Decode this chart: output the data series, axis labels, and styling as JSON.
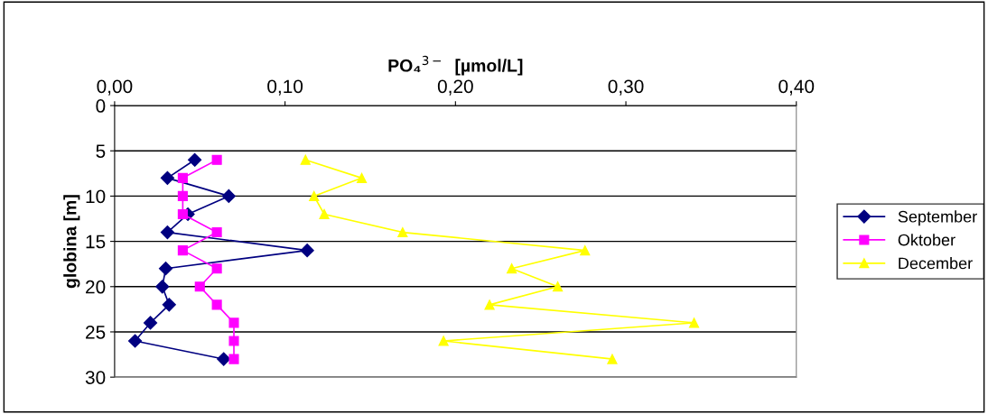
{
  "chart_data": {
    "type": "line",
    "xlabel": "PO₄$^{3−}$  [µmol/L]",
    "ylabel": "globina [m]",
    "xlim": [
      0,
      0.4
    ],
    "xticks": [
      {
        "value": 0,
        "label": "0,00"
      },
      {
        "value": 0.1,
        "label": "0,10"
      },
      {
        "value": 0.2,
        "label": "0,20"
      },
      {
        "value": 0.3,
        "label": "0,30"
      },
      {
        "value": 0.4,
        "label": "0,40"
      }
    ],
    "ylim": [
      30,
      0
    ],
    "yticks": [
      0,
      5,
      10,
      15,
      20,
      25,
      30
    ],
    "grid": "y",
    "legend": "right",
    "series": [
      {
        "name": "September",
        "color": "#000080",
        "marker": "diamond",
        "x": [
          0.047,
          0.031,
          0.067,
          0.043,
          0.031,
          0.113,
          0.03,
          0.028,
          0.032,
          0.021,
          0.012,
          0.064
        ],
        "values": [
          6,
          8,
          10,
          12,
          14,
          16,
          18,
          20,
          22,
          24,
          26,
          28
        ]
      },
      {
        "name": "Oktober",
        "color": "#ff00ff",
        "marker": "square",
        "x": [
          0.06,
          0.04,
          0.04,
          0.04,
          0.06,
          0.04,
          0.06,
          0.05,
          0.06,
          0.07,
          0.07,
          0.07
        ],
        "values": [
          6,
          8,
          10,
          12,
          14,
          16,
          18,
          20,
          22,
          24,
          26,
          28
        ]
      },
      {
        "name": "December",
        "color": "#ffff00",
        "marker": "triangle",
        "x": [
          0.112,
          0.145,
          0.117,
          0.123,
          0.169,
          0.276,
          0.233,
          0.26,
          0.22,
          0.34,
          0.193,
          0.292
        ],
        "values": [
          6,
          8,
          10,
          12,
          14,
          16,
          18,
          20,
          22,
          24,
          26,
          28
        ]
      }
    ]
  }
}
